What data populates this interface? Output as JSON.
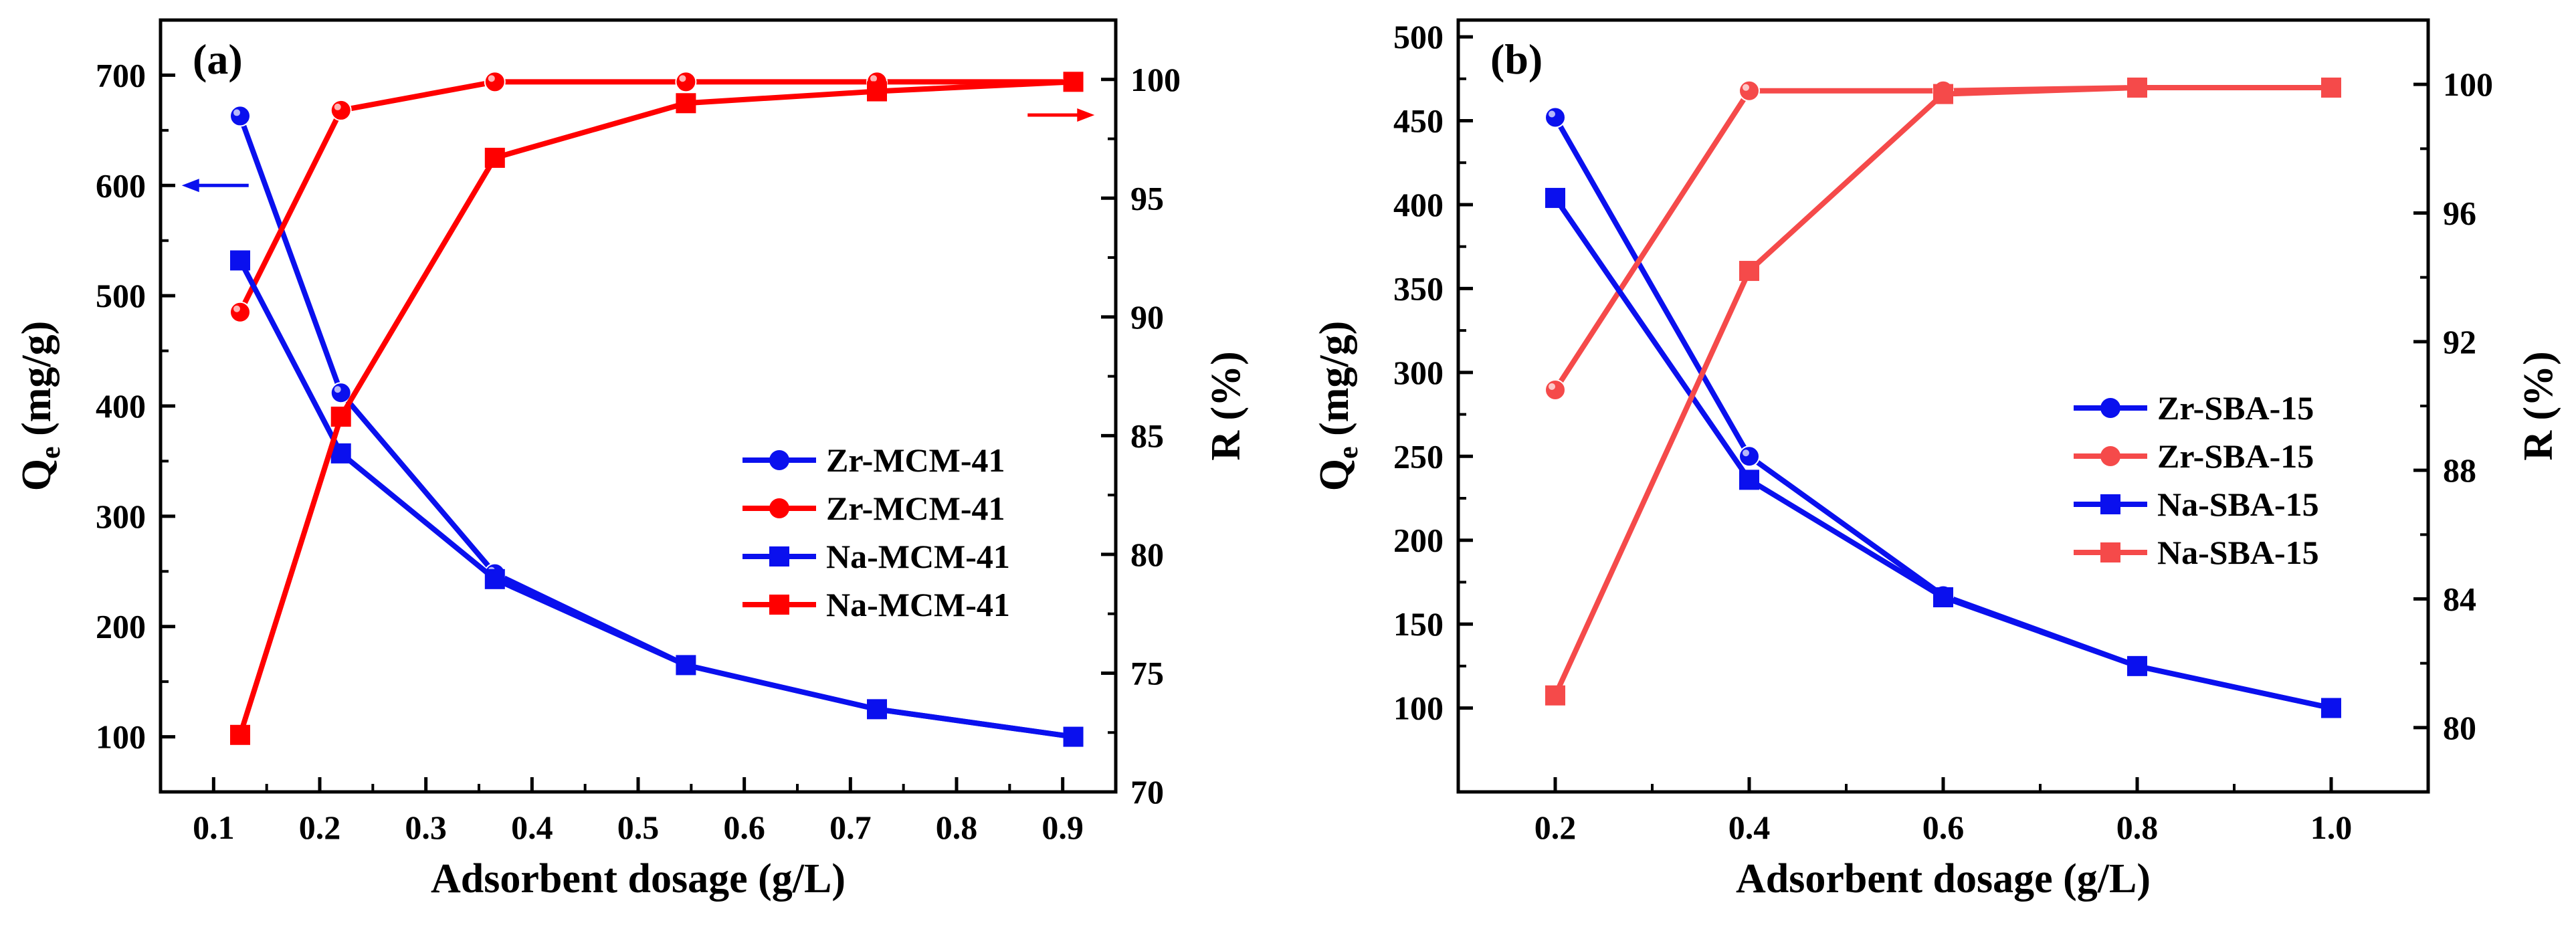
{
  "colors": {
    "blue": "#0a10ee",
    "red": "#ff0000",
    "red_light": "#f54a4a",
    "axis": "#000000"
  },
  "chart_data": [
    {
      "type": "line",
      "panel_label": "(a)",
      "xlabel": "Adsorbent dosage (g/L)",
      "ylabel_main": "Q",
      "ylabel_sub": "e",
      "ylabel_rest": " (mg/g)",
      "y2label": "R (%)",
      "xlim": [
        0.05,
        0.95
      ],
      "ylim": [
        50,
        750
      ],
      "y2lim": [
        70,
        102.5
      ],
      "xticks": [
        0.1,
        0.2,
        0.3,
        0.4,
        0.5,
        0.6,
        0.7,
        0.8,
        0.9
      ],
      "xtick_labels": [
        "0.1",
        "0.2",
        "0.3",
        "0.4",
        "0.5",
        "0.6",
        "0.7",
        "0.8",
        "0.9"
      ],
      "yticks": [
        100,
        200,
        300,
        400,
        500,
        600,
        700
      ],
      "ytick_labels": [
        "100",
        "200",
        "300",
        "400",
        "500",
        "600",
        "700"
      ],
      "y2ticks": [
        70,
        75,
        80,
        85,
        90,
        95,
        100
      ],
      "y2tick_labels": [
        "70",
        "75",
        "80",
        "85",
        "90",
        "95",
        "100"
      ],
      "arrows": [
        {
          "direction": "left",
          "at_x": 0.07,
          "at_y": 600,
          "axis": "left",
          "color_key": "blue"
        },
        {
          "direction": "right",
          "at_x": 0.93,
          "at_y": 98.5,
          "axis": "right",
          "color_key": "red"
        }
      ],
      "series": [
        {
          "name": "Zr-MCM-41",
          "axis": "left",
          "marker": "circle",
          "color_key": "blue",
          "x": [
            0.125,
            0.22,
            0.365,
            0.545,
            0.725,
            0.91
          ],
          "values": [
            663,
            412,
            248,
            165,
            125,
            100
          ]
        },
        {
          "name": "Zr-MCM-41",
          "axis": "right",
          "marker": "circle",
          "color_key": "red",
          "x": [
            0.125,
            0.22,
            0.365,
            0.545,
            0.725,
            0.91
          ],
          "values": [
            90.2,
            98.7,
            99.9,
            99.9,
            99.9,
            99.9
          ]
        },
        {
          "name": "Na-MCM-41",
          "axis": "left",
          "marker": "square",
          "color_key": "blue",
          "x": [
            0.125,
            0.22,
            0.365,
            0.545,
            0.725,
            0.91
          ],
          "values": [
            532,
            357,
            243,
            165,
            125,
            100
          ]
        },
        {
          "name": "Na-MCM-41",
          "axis": "right",
          "marker": "square",
          "color_key": "red",
          "x": [
            0.125,
            0.22,
            0.365,
            0.545,
            0.725,
            0.91
          ],
          "values": [
            72.4,
            85.8,
            96.7,
            99.0,
            99.5,
            99.9
          ]
        }
      ]
    },
    {
      "type": "line",
      "panel_label": "(b)",
      "xlabel": "Adsorbent dosage (g/L)",
      "ylabel_main": "Q",
      "ylabel_sub": "e",
      "ylabel_rest": " (mg/g)",
      "y2label": "R (%)",
      "xlim": [
        0.1,
        1.1
      ],
      "ylim": [
        50,
        510
      ],
      "y2lim": [
        78,
        102
      ],
      "xticks": [
        0.2,
        0.4,
        0.6,
        0.8,
        1.0
      ],
      "xtick_labels": [
        "0.2",
        "0.4",
        "0.6",
        "0.8",
        "1.0"
      ],
      "yticks": [
        100,
        150,
        200,
        250,
        300,
        350,
        400,
        450,
        500
      ],
      "ytick_labels": [
        "100",
        "150",
        "200",
        "250",
        "300",
        "350",
        "400",
        "450",
        "500"
      ],
      "y2ticks": [
        80,
        84,
        88,
        92,
        96,
        100
      ],
      "y2tick_labels": [
        "80",
        "84",
        "88",
        "92",
        "96",
        "100"
      ],
      "arrows": [],
      "series": [
        {
          "name": "Zr-SBA-15",
          "axis": "left",
          "marker": "circle",
          "color_key": "blue",
          "x": [
            0.2,
            0.4,
            0.6,
            0.8,
            1.0
          ],
          "values": [
            452,
            250,
            167,
            125,
            100
          ]
        },
        {
          "name": "Zr-SBA-15",
          "axis": "right",
          "marker": "circle",
          "color_key": "red_light",
          "x": [
            0.2,
            0.4,
            0.6,
            0.8,
            1.0
          ],
          "values": [
            90.5,
            99.8,
            99.8,
            99.9,
            99.9
          ]
        },
        {
          "name": "Na-SBA-15",
          "axis": "left",
          "marker": "square",
          "color_key": "blue",
          "x": [
            0.2,
            0.4,
            0.6,
            0.8,
            1.0
          ],
          "values": [
            404,
            236,
            166,
            125,
            100
          ]
        },
        {
          "name": "Na-SBA-15",
          "axis": "right",
          "marker": "square",
          "color_key": "red_light",
          "x": [
            0.2,
            0.4,
            0.6,
            0.8,
            1.0
          ],
          "values": [
            81.0,
            94.2,
            99.7,
            99.9,
            99.9
          ]
        }
      ]
    }
  ]
}
